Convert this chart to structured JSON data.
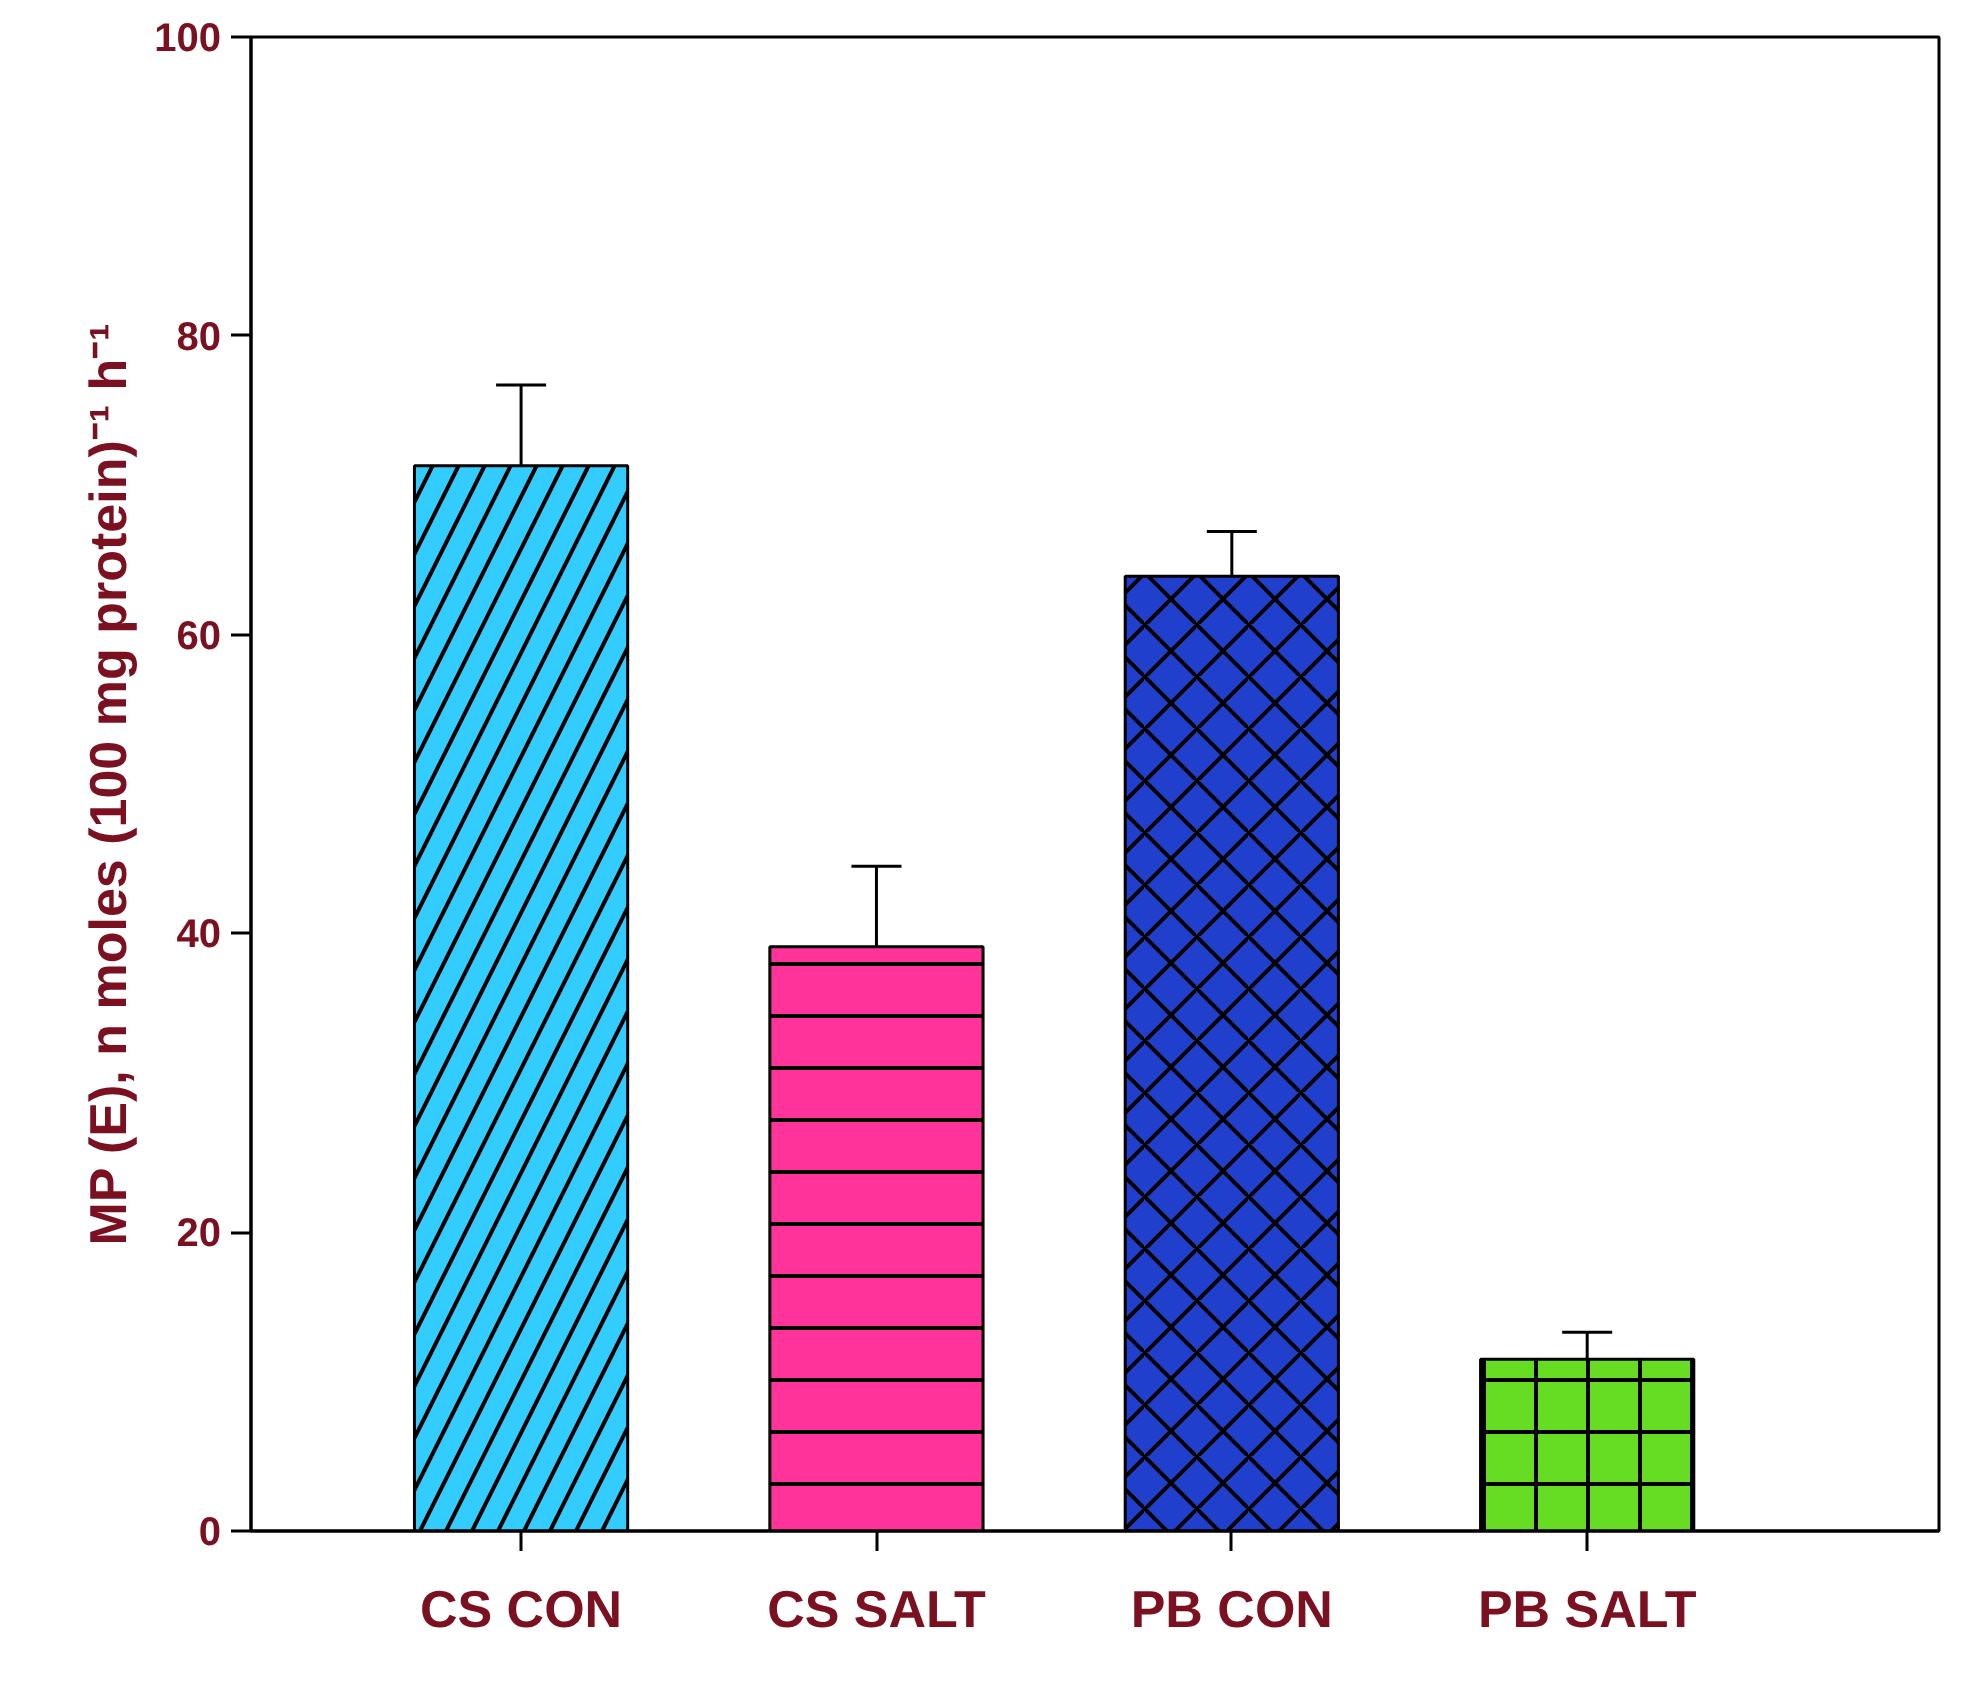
{
  "chart_data": {
    "type": "bar",
    "ylabel": "MP (E), n moles (100 mg protein)⁻¹ h⁻¹",
    "categories": [
      "CS CON",
      "CS SALT",
      "PB CON",
      "PB SALT"
    ],
    "values": [
      71.3,
      39.1,
      63.9,
      11.5
    ],
    "colors": [
      "#33ccff",
      "#ff3399",
      "#1f3fcc",
      "#66dd22"
    ],
    "errors": [
      [
        71.3,
        76.7
      ],
      [
        39.1,
        44.5
      ],
      [
        63.9,
        66.9
      ],
      [
        11.5,
        13.3
      ]
    ],
    "ylim": [
      0,
      100
    ],
    "yticks": [
      0,
      20,
      40,
      60,
      80,
      100
    ],
    "grid": false
  }
}
